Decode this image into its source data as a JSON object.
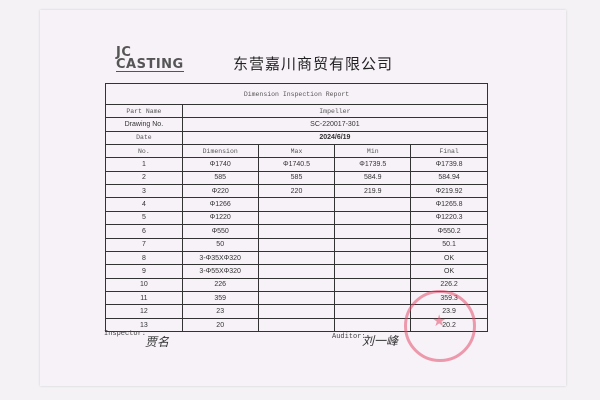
{
  "header": {
    "logo_line1": "JC",
    "logo_line2": "CASTING",
    "company": "东营嘉川商贸有限公司"
  },
  "report": {
    "title": "Dimension Inspection Report",
    "part_name_label": "Part Name",
    "part_name": "Impeller",
    "drawing_label": "Drawing No.",
    "drawing_no": "SC-220017-301",
    "date_label": "Date",
    "date": "2024/6/19",
    "columns": [
      "No.",
      "Dimension",
      "Max",
      "Min",
      "Final"
    ],
    "rows": [
      [
        "1",
        "Φ1740",
        "Φ1740.5",
        "Φ1739.5",
        "Φ1739.8"
      ],
      [
        "2",
        "585",
        "585",
        "584.9",
        "584.94"
      ],
      [
        "3",
        "Φ220",
        "220",
        "219.9",
        "Φ219.92"
      ],
      [
        "4",
        "Φ1266",
        "",
        "",
        "Φ1265.8"
      ],
      [
        "5",
        "Φ1220",
        "",
        "",
        "Φ1220.3"
      ],
      [
        "6",
        "Φ550",
        "",
        "",
        "Φ550.2"
      ],
      [
        "7",
        "50",
        "",
        "",
        "50.1"
      ],
      [
        "8",
        "3-Φ35XΦ320",
        "",
        "",
        "OK"
      ],
      [
        "9",
        "3-Φ55XΦ320",
        "",
        "",
        "OK"
      ],
      [
        "10",
        "226",
        "",
        "",
        "226.2"
      ],
      [
        "11",
        "359",
        "",
        "",
        "359.3"
      ],
      [
        "12",
        "23",
        "",
        "",
        "23.9"
      ],
      [
        "13",
        "20",
        "",
        "",
        "20.2"
      ]
    ]
  },
  "footer": {
    "inspector_label": "Inspector:",
    "inspector_sig": "贾名",
    "auditor_label": "Auditor:",
    "auditor_sig": "刘一峰"
  },
  "colors": {
    "stamp": "#e6506e"
  }
}
